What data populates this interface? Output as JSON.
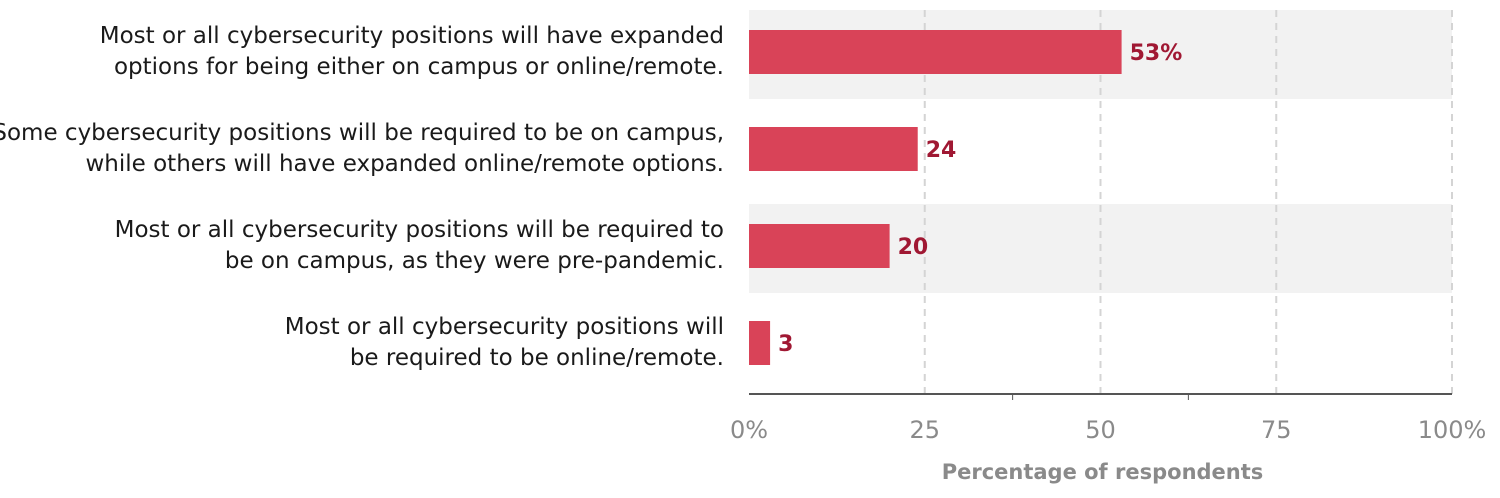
{
  "chart_data": {
    "type": "bar",
    "orientation": "horizontal",
    "categories": [
      "Most or all cybersecurity positions will have expanded options for being either on campus or online/remote.",
      "Some cybersecurity positions will be required to be on campus, while others will have expanded online/remote options.",
      "Most or all cybersecurity positions will be required to be on campus, as they were pre-pandemic.",
      "Most or all cybersecurity positions will be required to be online/remote."
    ],
    "category_lines": [
      [
        "Most or all cybersecurity positions will have expanded",
        "options for being either on campus or online/remote."
      ],
      [
        "Some cybersecurity positions will be required to be on campus,",
        "while others will have expanded online/remote options."
      ],
      [
        "Most or all cybersecurity positions will be required to",
        "be on campus, as they were pre-pandemic."
      ],
      [
        "Most or all cybersecurity positions will",
        "be required to be online/remote."
      ]
    ],
    "values": [
      53,
      24,
      20,
      3
    ],
    "value_labels": [
      "53%",
      "24",
      "20",
      "3"
    ],
    "xlim": [
      0,
      100
    ],
    "ticks": [
      0,
      25,
      50,
      75,
      100
    ],
    "tick_labels": [
      "0%",
      "25",
      "50",
      "75",
      "100%"
    ],
    "xlabel": "Percentage of respondents",
    "grid": true,
    "colors": {
      "bar": "#d94358",
      "value_label": "#a01833",
      "band": "#f2f2f2",
      "grid": "#d4d4d4",
      "axis": "#555555",
      "tick_label": "#8a8a8a"
    }
  }
}
